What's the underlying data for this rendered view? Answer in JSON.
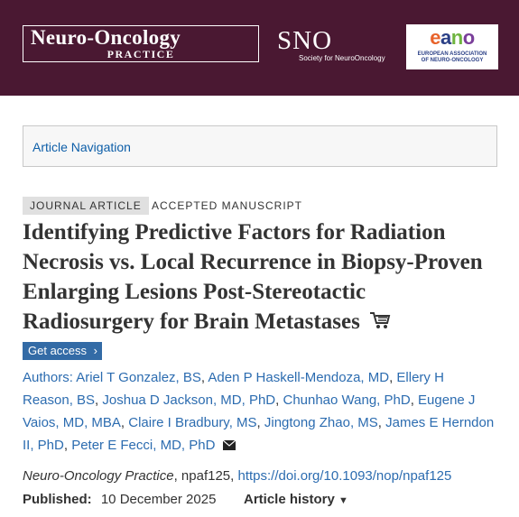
{
  "header": {
    "logo_line1": "Neuro-Oncology",
    "logo_line2": "PRACTICE",
    "sno_big": "SNO",
    "sno_small": "Society for NeuroOncology",
    "eano_word": "eano",
    "eano_sub1": "EUROPEAN ASSOCIATION",
    "eano_sub2": "OF NEURO-ONCOLOGY",
    "colors": {
      "banner": "#4a1832",
      "link": "#2c6cb0",
      "button": "#336ba6"
    }
  },
  "nav": {
    "label": "Article Navigation"
  },
  "tags": {
    "type": "JOURNAL ARTICLE",
    "status": "ACCEPTED MANUSCRIPT"
  },
  "article": {
    "title": "Identifying Predictive Factors for Radiation Necrosis vs. Local Recurrence in Biopsy-Proven Enlarging Lesions Post-Stereotactic Radiosurgery for Brain Metastases",
    "get_access": "Get access",
    "authors_label": "Authors:",
    "authors": [
      "Ariel T Gonzalez, BS",
      "Aden P Haskell-Mendoza, MD",
      "Ellery H Reason, BS",
      "Joshua D Jackson, MD, PhD",
      "Chunhao Wang, PhD",
      "Eugene J Vaios, MD, MBA",
      "Claire I Bradbury, MS",
      "Jingtong Zhao, MS",
      "James E Herndon II, PhD",
      "Peter E Fecci, MD, PhD"
    ],
    "journal": "Neuro-Oncology Practice",
    "article_id": ", npaf125, ",
    "doi": "https://doi.org/10.1093/nop/npaf125",
    "published_label": "Published:",
    "published_date": "10 December 2025",
    "history_label": "Article history",
    "icons": [
      "cart-icon",
      "mail-icon",
      "caret-down-icon",
      "chevron-right-icon"
    ]
  }
}
